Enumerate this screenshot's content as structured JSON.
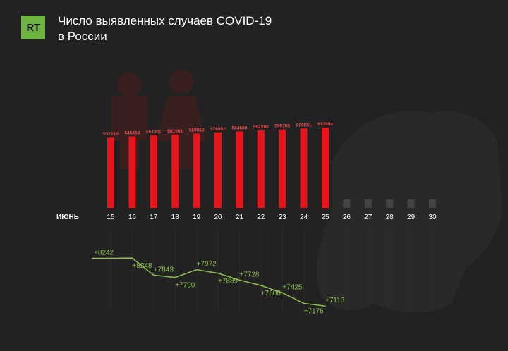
{
  "header": {
    "logo_text": "RT",
    "title_line1": "Число выявленных случаев COVID-19",
    "title_line2": "в России"
  },
  "colors": {
    "background": "#222222",
    "bar_active": "#e8141c",
    "bar_future": "#444444",
    "bar_label": "#e85050",
    "line": "#8cc14c",
    "brand": "#6db33f"
  },
  "chart_data": [
    {
      "type": "bar",
      "title": "Число выявленных случаев COVID-19 в России",
      "xlabel": "ИЮНЬ",
      "categories": [
        "15",
        "16",
        "17",
        "18",
        "19",
        "20",
        "21",
        "22",
        "23",
        "24",
        "25",
        "26",
        "27",
        "28",
        "29",
        "30"
      ],
      "values": [
        537210,
        545458,
        553301,
        561091,
        569063,
        576952,
        584680,
        592280,
        599705,
        606881,
        613994,
        null,
        null,
        null,
        null,
        null
      ],
      "ylim": [
        0,
        700000
      ],
      "grid": false
    },
    {
      "type": "line",
      "categories": [
        "15",
        "16",
        "17",
        "18",
        "19",
        "20",
        "21",
        "22",
        "23",
        "24",
        "25"
      ],
      "values": [
        8242,
        8248,
        7843,
        7790,
        7972,
        7889,
        7728,
        7600,
        7425,
        7176,
        7113
      ],
      "labels": [
        "+8242",
        "+8248",
        "+7843",
        "+7790",
        "+7972",
        "+7889",
        "+7728",
        "+7600",
        "+7425",
        "+7176",
        "+7113"
      ],
      "ylim": [
        7000,
        8300
      ]
    }
  ]
}
